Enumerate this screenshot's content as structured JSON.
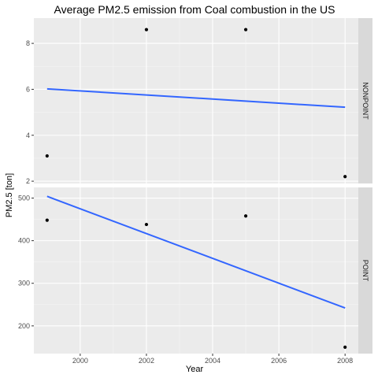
{
  "chart_data": {
    "type": "scatter",
    "title": "Average PM2.5 emission from Coal combustion in the US",
    "xlabel": "Year",
    "ylabel": "PM2.5 [ton]",
    "xlim": [
      1998.6,
      2008.4
    ],
    "x_ticks": [
      2000,
      2002,
      2004,
      2006,
      2008
    ],
    "grid": true,
    "facets": [
      {
        "name": "NONPOINT",
        "ylim": [
          1.9,
          9.1
        ],
        "y_ticks": [
          2,
          4,
          6,
          8
        ],
        "points": [
          {
            "x": 1999,
            "y": 3.1
          },
          {
            "x": 2002,
            "y": 8.6
          },
          {
            "x": 2005,
            "y": 8.6
          },
          {
            "x": 2008,
            "y": 2.2
          }
        ],
        "trend": {
          "x": [
            1999,
            2008
          ],
          "y": [
            6.02,
            5.22
          ],
          "color": "#3366FF"
        }
      },
      {
        "name": "POINT",
        "ylim": [
          135,
          525
        ],
        "y_ticks": [
          200,
          300,
          400,
          500
        ],
        "points": [
          {
            "x": 1999,
            "y": 448
          },
          {
            "x": 2002,
            "y": 438
          },
          {
            "x": 2005,
            "y": 458
          },
          {
            "x": 2008,
            "y": 150
          }
        ],
        "trend": {
          "x": [
            1999,
            2008
          ],
          "y": [
            504,
            242
          ],
          "color": "#3366FF"
        }
      }
    ]
  },
  "colors": {
    "panel_bg": "#EBEBEB",
    "strip_bg": "#D9D9D9",
    "grid_major": "#FFFFFF",
    "point": "#000000",
    "trend": "#3366FF"
  }
}
